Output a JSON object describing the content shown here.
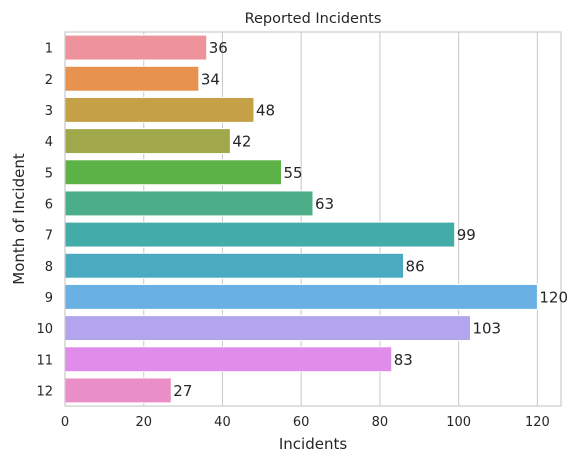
{
  "chart_data": {
    "type": "bar",
    "orientation": "horizontal",
    "title": "Reported Incidents",
    "xlabel": "Incidents",
    "ylabel": "Month of Incident",
    "categories": [
      "1",
      "2",
      "3",
      "4",
      "5",
      "6",
      "7",
      "8",
      "9",
      "10",
      "11",
      "12"
    ],
    "values": [
      36,
      34,
      48,
      42,
      55,
      63,
      99,
      86,
      120,
      103,
      83,
      27
    ],
    "colors": [
      "#ee929c",
      "#e7924f",
      "#c4a147",
      "#a1a84b",
      "#5cb147",
      "#4cae88",
      "#44aca8",
      "#4aaabf",
      "#69b0e3",
      "#b3a4ee",
      "#e08cea",
      "#ea8ec8"
    ],
    "xlim": [
      0,
      126
    ],
    "xticks": [
      0,
      20,
      40,
      60,
      80,
      100,
      120
    ],
    "grid": true,
    "legend": "none"
  }
}
